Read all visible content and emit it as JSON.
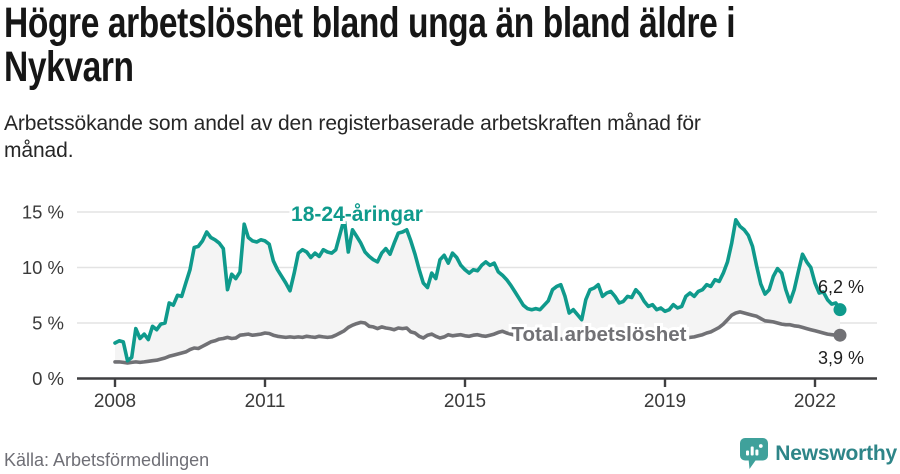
{
  "header": {
    "title": "Högre arbetslöshet bland unga än bland äldre i Nykvarn",
    "title_lines": [
      "Högre arbetslöshet bland unga än bland äldre i",
      "Nykvarn"
    ],
    "subtitle": "Arbetssökande som andel av den registerbaserade arbetskraften månad för månad.",
    "subtitle_lines": [
      "Arbetssökande som andel av den registerbaserade arbetskraften månad för",
      "månad."
    ]
  },
  "chart_data": {
    "type": "line",
    "title": "Högre arbetslöshet bland unga än bland äldre i Nykvarn",
    "subtitle": "Arbetssökande som andel av den registerbaserade arbetskraften månad för månad.",
    "units": "%",
    "frequency": "monthly",
    "xlim": [
      2008.0,
      2022.58
    ],
    "ylim": [
      0,
      15
    ],
    "grid": "horizontal",
    "band_fill": "#f4f4f4",
    "y_axis": [
      {
        "label": "15 %",
        "value": 15
      },
      {
        "label": "10 %",
        "value": 10
      },
      {
        "label": "5 %",
        "value": 5
      },
      {
        "label": "0 %",
        "value": 0
      }
    ],
    "x_axis": [
      {
        "label": "2008",
        "year": 2008
      },
      {
        "label": "2011",
        "year": 2011
      },
      {
        "label": "2015",
        "year": 2015
      },
      {
        "label": "2019",
        "year": 2019
      },
      {
        "label": "2022",
        "year": 2022
      }
    ],
    "series": [
      {
        "name": "18-24-åringar",
        "color": "#0f9a8c",
        "start_year": 2008,
        "end_value_label": "6,2 %",
        "values_monthly": [
          3.2,
          3.4,
          3.3,
          1.6,
          1.9,
          4.5,
          3.6,
          4.0,
          3.5,
          4.7,
          4.4,
          4.9,
          5.0,
          6.8,
          6.6,
          7.5,
          7.4,
          8.6,
          9.8,
          11.8,
          11.9,
          12.4,
          13.2,
          12.7,
          12.5,
          12.2,
          11.7,
          8.0,
          9.4,
          9.0,
          9.6,
          13.9,
          12.7,
          12.4,
          12.3,
          12.5,
          12.4,
          12.1,
          10.6,
          9.8,
          9.2,
          8.6,
          7.9,
          9.5,
          11.3,
          11.6,
          11.4,
          10.9,
          11.3,
          11.0,
          11.6,
          11.4,
          11.3,
          11.6,
          13.0,
          14.4,
          11.4,
          13.4,
          12.8,
          12.2,
          11.4,
          11.0,
          10.7,
          10.5,
          11.3,
          11.7,
          11.2,
          12.2,
          13.1,
          13.2,
          13.4,
          12.4,
          11.2,
          9.8,
          8.6,
          8.2,
          9.5,
          9.0,
          10.7,
          11.1,
          10.4,
          11.3,
          10.9,
          10.2,
          9.8,
          9.5,
          9.8,
          9.7,
          10.2,
          10.5,
          10.2,
          10.4,
          9.6,
          9.3,
          8.9,
          8.4,
          7.8,
          7.2,
          6.6,
          6.3,
          6.2,
          6.3,
          6.2,
          6.6,
          7.0,
          8.0,
          8.3,
          8.45,
          7.4,
          5.9,
          6.2,
          5.75,
          5.3,
          7.1,
          8.0,
          8.15,
          8.45,
          7.4,
          7.7,
          7.85,
          7.4,
          6.8,
          6.95,
          7.4,
          7.3,
          8.0,
          7.6,
          6.95,
          6.5,
          6.65,
          6.2,
          6.35,
          6.05,
          6.2,
          6.65,
          6.35,
          6.5,
          7.4,
          7.7,
          7.4,
          7.85,
          8.0,
          8.45,
          8.3,
          8.9,
          8.75,
          9.5,
          10.5,
          12.2,
          14.3,
          13.7,
          13.4,
          12.9,
          11.9,
          10.1,
          8.5,
          7.6,
          8.0,
          9.2,
          9.9,
          9.5,
          8.0,
          6.9,
          8.0,
          9.6,
          11.2,
          10.5,
          10.0,
          8.6,
          7.7,
          7.8,
          7.1,
          6.7,
          6.8,
          6.2
        ]
      },
      {
        "name": "Total arbetslöshet",
        "color": "#717175",
        "start_year": 2008,
        "end_value_label": "3,9 %",
        "values_monthly": [
          1.5,
          1.5,
          1.45,
          1.4,
          1.45,
          1.5,
          1.45,
          1.5,
          1.55,
          1.6,
          1.65,
          1.75,
          1.85,
          2.0,
          2.1,
          2.2,
          2.3,
          2.4,
          2.6,
          2.75,
          2.7,
          2.9,
          3.1,
          3.3,
          3.4,
          3.55,
          3.6,
          3.7,
          3.6,
          3.65,
          3.9,
          3.95,
          4.0,
          3.9,
          3.95,
          4.0,
          4.1,
          4.05,
          3.9,
          3.8,
          3.75,
          3.7,
          3.75,
          3.7,
          3.75,
          3.7,
          3.8,
          3.75,
          3.7,
          3.8,
          3.75,
          3.7,
          3.75,
          3.9,
          4.1,
          4.3,
          4.6,
          4.8,
          4.95,
          5.05,
          5.0,
          4.7,
          4.65,
          4.5,
          4.65,
          4.55,
          4.5,
          4.4,
          4.55,
          4.5,
          4.55,
          4.2,
          4.1,
          3.8,
          3.65,
          3.9,
          4.0,
          3.8,
          3.65,
          3.75,
          3.95,
          3.85,
          3.9,
          3.95,
          3.85,
          3.8,
          3.9,
          3.95,
          3.85,
          3.8,
          3.9,
          4.0,
          4.15,
          4.25,
          4.1,
          4.0,
          3.9,
          3.85,
          3.8,
          3.75,
          3.7,
          3.65,
          3.7,
          3.75,
          3.7,
          3.65,
          3.6,
          3.55,
          3.55,
          3.5,
          3.45,
          3.5,
          3.55,
          3.6,
          3.55,
          3.5,
          3.45,
          3.5,
          3.45,
          3.4,
          3.45,
          3.5,
          3.55,
          3.5,
          3.45,
          3.4,
          3.45,
          3.5,
          3.45,
          3.5,
          3.45,
          3.5,
          3.55,
          3.5,
          3.6,
          3.65,
          3.6,
          3.65,
          3.7,
          3.75,
          3.85,
          3.95,
          4.1,
          4.2,
          4.4,
          4.6,
          4.9,
          5.3,
          5.7,
          5.9,
          6.0,
          5.9,
          5.8,
          5.7,
          5.6,
          5.4,
          5.2,
          5.15,
          5.1,
          5.0,
          4.9,
          4.85,
          4.85,
          4.75,
          4.7,
          4.6,
          4.5,
          4.4,
          4.3,
          4.2,
          4.1,
          4.0,
          3.95,
          3.9,
          3.9
        ]
      }
    ]
  },
  "footer": {
    "source": "Källa: Arbetsförmedlingen",
    "brand": "Newsworthy"
  }
}
